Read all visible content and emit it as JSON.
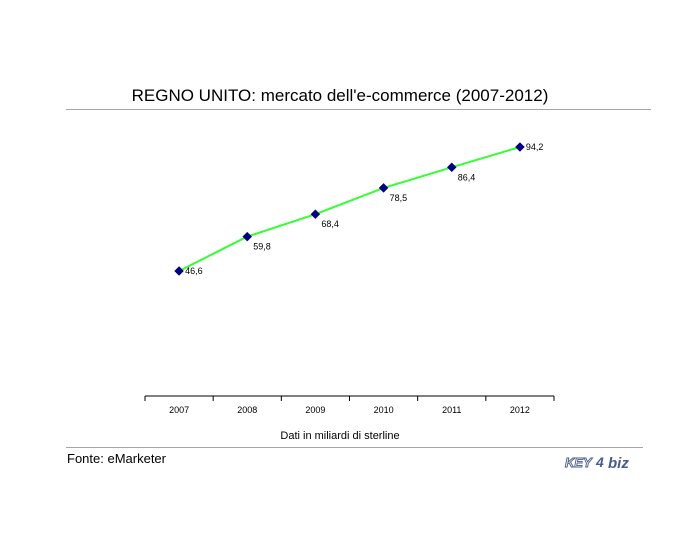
{
  "title": "REGNO UNITO: mercato dell'e-commerce (2007-2012)",
  "subtitle": "Dati in miliardi di sterline",
  "source": "Fonte: eMarketer",
  "logo": {
    "text_left": "KEY",
    "text_mid": "4",
    "text_right": "biz"
  },
  "colors": {
    "line": "#33ff33",
    "marker": "#000080",
    "rule": "#a6a6a6",
    "logo": "#4a5a8c"
  },
  "chart_data": {
    "type": "line",
    "title": "REGNO UNITO: mercato dell'e-commerce (2007-2012)",
    "categories": [
      "2007",
      "2008",
      "2009",
      "2010",
      "2011",
      "2012"
    ],
    "values": [
      46.6,
      59.8,
      68.4,
      78.5,
      86.4,
      94.2
    ],
    "value_labels": [
      "46,6",
      "59,8",
      "68,4",
      "78,5",
      "86,4",
      "94,2"
    ],
    "xlabel": "Dati in miliardi di sterline",
    "ylabel": "",
    "grid": false,
    "legend": "none"
  }
}
